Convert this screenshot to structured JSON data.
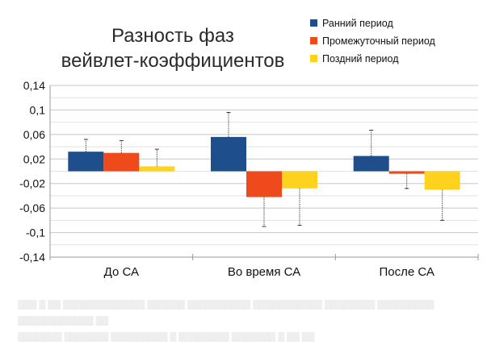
{
  "chart_data": {
    "type": "bar",
    "title": "Разность фаз вейвлет-коэффициентов",
    "title_lines": [
      "Разность фаз",
      "вейвлет-коэффициентов"
    ],
    "categories": [
      "До СА",
      "Во время СА",
      "После СА"
    ],
    "series": [
      {
        "name": "Ранний период",
        "color": "#1f4e8c",
        "values": [
          0.032,
          0.056,
          0.025
        ],
        "errors": [
          0.02,
          0.04,
          0.042
        ],
        "error_direction": [
          "up",
          "up",
          "up"
        ]
      },
      {
        "name": "Промежуточный период",
        "color": "#ef4a1c",
        "values": [
          0.03,
          -0.042,
          -0.004
        ],
        "errors": [
          0.02,
          0.048,
          0.024
        ],
        "error_direction": [
          "up",
          "down",
          "down"
        ]
      },
      {
        "name": "Поздний период",
        "color": "#ffd21e",
        "values": [
          0.008,
          -0.028,
          -0.03
        ],
        "errors": [
          0.028,
          0.06,
          0.05
        ],
        "error_direction": [
          "up",
          "down",
          "down"
        ]
      }
    ],
    "yticks": [
      0.14,
      0.1,
      0.06,
      0.02,
      -0.02,
      -0.06,
      -0.1,
      -0.14
    ],
    "ytick_labels": [
      "0,14",
      "0,1",
      "0,06",
      "0,02",
      "-0,02",
      "-0,06",
      "-0,1",
      "-0,14"
    ],
    "ylim": [
      -0.14,
      0.14
    ],
    "xlabel": "",
    "ylabel": "",
    "grid": true,
    "legend_position": "top-right"
  }
}
